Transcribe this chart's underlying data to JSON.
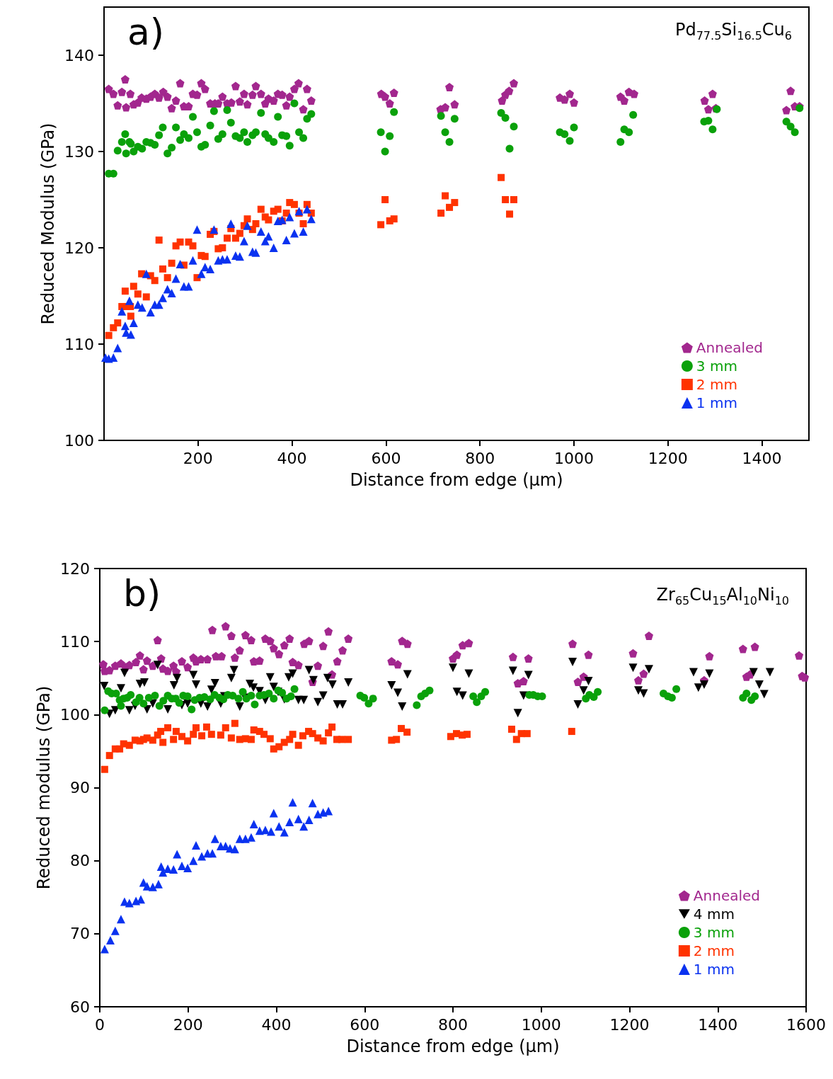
{
  "chart_data": [
    {
      "type": "scatter",
      "title": "a)",
      "subtitle": "Pd$_{77.5}$Si$_{16.5}$Cu$_{6}$",
      "xlabel": "Distance from edge (μm)",
      "ylabel": "Reduced Modulus (GPa)",
      "xlim": [
        0,
        1500
      ],
      "xticks": [
        200,
        400,
        600,
        800,
        1000,
        1200,
        1400
      ],
      "ylim": [
        100,
        145
      ],
      "yticks": [
        100,
        110,
        120,
        130,
        140
      ],
      "grid": false,
      "legend": "bottom right",
      "series": [
        {
          "name": "Annealed",
          "color": "#a2278e",
          "x": [
            10,
            20,
            29,
            38,
            45,
            47,
            56,
            63,
            72,
            80,
            90,
            99,
            108,
            117,
            126,
            135,
            144,
            153,
            162,
            170,
            180,
            189,
            198,
            207,
            215,
            226,
            236,
            243,
            252,
            262,
            271,
            280,
            289,
            298,
            305,
            316,
            323,
            334,
            343,
            350,
            361,
            370,
            379,
            388,
            395,
            405,
            414,
            424,
            432,
            441,
            590,
            598,
            608,
            617,
            716,
            726,
            735,
            746,
            847,
            854,
            862,
            872,
            970,
            980,
            991,
            1000,
            1099,
            1107,
            1117,
            1128,
            1278,
            1286,
            1295,
            1302,
            1452,
            1461,
            1470,
            1480
          ],
          "values": [
            136.5,
            136.0,
            134.8,
            136.2,
            137.5,
            134.6,
            136.0,
            134.9,
            135.1,
            135.6,
            135.5,
            135.7,
            136.0,
            135.6,
            136.2,
            135.7,
            134.5,
            135.3,
            137.1,
            134.7,
            134.7,
            136.0,
            135.9,
            137.1,
            136.5,
            135.0,
            135.0,
            135.0,
            135.7,
            135.0,
            135.1,
            136.8,
            135.2,
            136.0,
            134.9,
            135.9,
            136.8,
            136.0,
            135.0,
            135.5,
            135.3,
            136.0,
            135.9,
            134.8,
            135.7,
            136.5,
            137.1,
            134.4,
            136.5,
            135.3,
            136.0,
            135.7,
            135.0,
            136.1,
            134.4,
            134.6,
            136.7,
            134.9,
            135.3,
            135.9,
            136.3,
            137.1,
            135.6,
            135.4,
            136.0,
            135.1,
            135.7,
            135.3,
            136.2,
            136.0,
            135.3,
            134.4,
            136.0,
            134.5,
            134.3,
            136.3,
            134.7,
            134.7
          ]
        },
        {
          "name": "3 mm",
          "color": "#0aa10a",
          "marker": "circle",
          "x": [
            10,
            20,
            29,
            38,
            45,
            47,
            54,
            57,
            63,
            72,
            81,
            90,
            99,
            108,
            117,
            125,
            135,
            144,
            153,
            162,
            170,
            180,
            189,
            198,
            207,
            215,
            226,
            234,
            243,
            252,
            262,
            270,
            280,
            289,
            298,
            305,
            316,
            323,
            334,
            343,
            350,
            361,
            370,
            379,
            388,
            395,
            405,
            415,
            424,
            432,
            441,
            589,
            598,
            608,
            617,
            717,
            726,
            735,
            746,
            845,
            854,
            863,
            872,
            970,
            980,
            991,
            1000,
            1099,
            1107,
            1117,
            1126,
            1277,
            1286,
            1295,
            1304,
            1452,
            1461,
            1470,
            1480
          ],
          "values": [
            127.7,
            127.7,
            130.1,
            131.0,
            131.8,
            129.8,
            131.0,
            130.8,
            130.0,
            130.5,
            130.3,
            131.0,
            130.9,
            130.7,
            131.7,
            132.5,
            129.8,
            130.4,
            132.5,
            131.2,
            131.8,
            131.4,
            133.6,
            132.0,
            130.5,
            130.7,
            132.7,
            134.2,
            131.3,
            131.8,
            134.3,
            133.0,
            131.6,
            131.4,
            132.0,
            131.0,
            131.7,
            132.0,
            134.0,
            131.8,
            131.4,
            131.0,
            133.6,
            131.7,
            131.6,
            130.6,
            135.0,
            132.0,
            131.4,
            133.4,
            133.9,
            132.0,
            130.0,
            131.6,
            134.1,
            133.7,
            132.0,
            131.0,
            133.4,
            134.0,
            133.5,
            130.3,
            132.6,
            132.0,
            131.8,
            131.1,
            132.5,
            131.0,
            132.3,
            132.0,
            133.8,
            133.1,
            133.2,
            132.3,
            134.4,
            133.1,
            132.6,
            132.0,
            134.5
          ]
        },
        {
          "name": "2 mm",
          "color": "#ff3300",
          "marker": "square",
          "x": [
            10,
            20,
            29,
            38,
            45,
            47,
            56,
            57,
            63,
            72,
            80,
            90,
            99,
            108,
            117,
            125,
            135,
            144,
            153,
            162,
            170,
            180,
            189,
            198,
            207,
            215,
            226,
            234,
            243,
            252,
            262,
            270,
            280,
            289,
            298,
            305,
            316,
            323,
            334,
            343,
            350,
            361,
            370,
            379,
            388,
            395,
            405,
            415,
            424,
            432,
            441,
            589,
            598,
            608,
            617,
            717,
            726,
            735,
            746,
            845,
            854,
            863,
            872
          ],
          "values": [
            110.9,
            111.7,
            112.2,
            113.9,
            115.5,
            113.9,
            113.9,
            112.9,
            116.0,
            115.2,
            117.3,
            114.9,
            117.1,
            116.6,
            120.8,
            117.8,
            116.9,
            118.4,
            120.2,
            120.6,
            118.2,
            120.6,
            120.2,
            116.9,
            119.2,
            119.1,
            121.4,
            121.7,
            119.9,
            120.0,
            121.0,
            122.0,
            121.0,
            121.5,
            122.3,
            123.0,
            121.9,
            122.5,
            124.0,
            123.2,
            122.9,
            123.8,
            124.0,
            122.8,
            123.6,
            124.7,
            124.5,
            123.6,
            122.5,
            124.5,
            123.6,
            122.4,
            125.0,
            122.8,
            123.0,
            123.6,
            125.4,
            124.2,
            124.7,
            127.3,
            125.0,
            123.5,
            125.0
          ]
        },
        {
          "name": "1 mm",
          "color": "#0a32f0",
          "marker": "triangle",
          "x": [
            3,
            10,
            20,
            29,
            38,
            45,
            47,
            54,
            57,
            63,
            72,
            81,
            90,
            99,
            108,
            117,
            125,
            135,
            144,
            153,
            162,
            170,
            180,
            189,
            198,
            207,
            215,
            226,
            234,
            243,
            252,
            262,
            270,
            280,
            289,
            298,
            305,
            316,
            323,
            334,
            343,
            350,
            361,
            370,
            379,
            388,
            395,
            405,
            415,
            424,
            432,
            441
          ],
          "values": [
            108.6,
            108.5,
            108.6,
            109.6,
            113.4,
            111.9,
            111.2,
            114.5,
            111.0,
            112.2,
            114.1,
            113.8,
            117.3,
            113.3,
            114.1,
            114.1,
            114.8,
            115.7,
            115.3,
            116.8,
            118.3,
            116.0,
            116.0,
            118.7,
            121.9,
            117.3,
            118.0,
            117.8,
            121.9,
            118.7,
            118.8,
            118.8,
            122.5,
            119.2,
            119.1,
            120.7,
            122.3,
            119.6,
            119.5,
            121.7,
            120.7,
            121.2,
            120.0,
            122.8,
            122.9,
            120.8,
            123.2,
            121.5,
            123.8,
            121.7,
            124.0,
            123.0
          ]
        }
      ]
    },
    {
      "type": "scatter",
      "title": "b)",
      "subtitle": "Zr$_{65}$Cu$_{15}$Al$_{10}$Ni$_{10}$",
      "xlabel": "Distance from edge (μm)",
      "ylabel": "Reduced modulus (GPa)",
      "xlim": [
        0,
        1600
      ],
      "xticks": [
        0,
        200,
        400,
        600,
        800,
        1000,
        1200,
        1400,
        1600
      ],
      "ylim": [
        60,
        120
      ],
      "yticks": [
        60,
        70,
        80,
        90,
        100,
        110,
        120
      ],
      "grid": false,
      "legend": "bottom right",
      "series": [
        {
          "name": "Annealed",
          "color": "#a2278e",
          "x": [
            8,
            11,
            22,
            35,
            48,
            58,
            67,
            82,
            91,
            99,
            107,
            120,
            131,
            139,
            143,
            154,
            167,
            173,
            186,
            199,
            212,
            218,
            229,
            244,
            255,
            263,
            276,
            285,
            298,
            306,
            317,
            330,
            343,
            349,
            362,
            375,
            386,
            394,
            406,
            418,
            430,
            437,
            450,
            463,
            474,
            482,
            494,
            506,
            518,
            526,
            538,
            550,
            563,
            661,
            675,
            685,
            697,
            800,
            809,
            822,
            836,
            936,
            947,
            960,
            971,
            1071,
            1083,
            1096,
            1107,
            1208,
            1220,
            1232,
            1244,
            1369,
            1381,
            1457,
            1465,
            1473,
            1484,
            1584,
            1591,
            1597
          ],
          "values": [
            106.9,
            106.0,
            106.1,
            106.7,
            107.0,
            106.5,
            106.8,
            107.2,
            108.1,
            106.2,
            107.4,
            106.7,
            110.2,
            107.7,
            106.3,
            106.0,
            106.7,
            105.9,
            107.3,
            106.5,
            107.8,
            107.3,
            107.6,
            107.6,
            111.6,
            108.0,
            108.0,
            112.1,
            110.8,
            107.8,
            108.8,
            110.9,
            110.2,
            107.3,
            107.4,
            110.4,
            110.1,
            109.1,
            108.3,
            109.5,
            110.4,
            107.2,
            106.8,
            109.7,
            110.1,
            104.5,
            106.7,
            109.4,
            111.4,
            105.5,
            107.3,
            108.8,
            110.4,
            107.3,
            106.9,
            110.1,
            109.7,
            107.7,
            108.2,
            109.5,
            109.8,
            107.9,
            104.3,
            104.6,
            107.7,
            109.7,
            104.5,
            105.2,
            108.2,
            108.4,
            104.7,
            105.6,
            110.8,
            104.7,
            108.0,
            109.0,
            105.2,
            105.5,
            109.3,
            108.1,
            105.3,
            105.1
          ]
        },
        {
          "name": "4 mm",
          "color": "#000000",
          "marker": "triangle-down",
          "x": [
            10,
            22,
            35,
            48,
            56,
            67,
            80,
            91,
            101,
            107,
            120,
            131,
            154,
            168,
            175,
            186,
            199,
            212,
            218,
            229,
            244,
            253,
            261,
            274,
            282,
            298,
            304,
            317,
            329,
            340,
            348,
            362,
            375,
            386,
            394,
            404,
            418,
            428,
            437,
            450,
            462,
            474,
            484,
            494,
            506,
            516,
            527,
            538,
            550,
            563,
            661,
            675,
            685,
            697,
            800,
            809,
            822,
            836,
            936,
            947,
            960,
            971,
            1071,
            1083,
            1096,
            1107,
            1208,
            1220,
            1232,
            1244,
            1345,
            1356,
            1369,
            1381,
            1481,
            1494,
            1505,
            1518
          ],
          "values": [
            103.9,
            100.1,
            100.6,
            103.6,
            105.7,
            100.6,
            101.2,
            104.2,
            104.4,
            100.7,
            101.5,
            106.8,
            100.7,
            104.0,
            105.0,
            101.3,
            101.5,
            105.4,
            104.1,
            101.5,
            101.1,
            103.4,
            104.3,
            101.5,
            102.5,
            105.0,
            106.1,
            101.1,
            102.3,
            104.2,
            103.7,
            103.2,
            102.0,
            105.1,
            103.8,
            103.1,
            102.1,
            105.1,
            105.6,
            102.0,
            102.0,
            106.1,
            104.7,
            101.7,
            102.6,
            105.0,
            104.1,
            101.4,
            101.4,
            104.4,
            104.0,
            103.0,
            101.1,
            105.5,
            106.4,
            103.1,
            102.6,
            105.6,
            106.0,
            100.2,
            102.6,
            105.4,
            107.2,
            101.4,
            103.3,
            104.6,
            106.4,
            103.3,
            102.9,
            106.2,
            105.8,
            103.7,
            104.1,
            105.6,
            105.8,
            104.1,
            102.8,
            105.8
          ]
        },
        {
          "name": "3 mm",
          "color": "#0aa10a",
          "marker": "circle",
          "x": [
            11,
            19,
            27,
            37,
            45,
            48,
            54,
            62,
            70,
            82,
            90,
            99,
            111,
            125,
            135,
            144,
            154,
            163,
            172,
            180,
            189,
            199,
            208,
            215,
            226,
            237,
            250,
            260,
            271,
            280,
            290,
            301,
            314,
            324,
            332,
            343,
            351,
            362,
            372,
            383,
            394,
            404,
            413,
            423,
            433,
            441,
            590,
            599,
            609,
            619,
            718,
            728,
            737,
            747,
            846,
            854,
            864,
            873,
            973,
            982,
            992,
            1002,
            1101,
            1109,
            1119,
            1128,
            1277,
            1287,
            1296,
            1306,
            1457,
            1465,
            1476,
            1484
          ],
          "values": [
            100.6,
            103.2,
            102.9,
            102.9,
            102.0,
            101.2,
            102.2,
            102.3,
            102.7,
            101.7,
            102.3,
            101.5,
            102.3,
            102.6,
            101.2,
            101.9,
            102.6,
            102.2,
            102.2,
            101.6,
            102.6,
            102.5,
            100.7,
            102.0,
            102.3,
            102.4,
            102.1,
            102.7,
            102.3,
            102.1,
            102.7,
            102.6,
            102.2,
            103.1,
            102.2,
            102.6,
            101.4,
            102.6,
            102.7,
            102.9,
            102.2,
            103.3,
            103.0,
            102.2,
            102.5,
            103.5,
            102.6,
            102.3,
            101.5,
            102.2,
            101.3,
            102.5,
            102.9,
            103.3,
            102.5,
            101.7,
            102.5,
            103.1,
            102.7,
            102.7,
            102.5,
            102.5,
            102.2,
            102.7,
            102.4,
            103.1,
            102.9,
            102.5,
            102.3,
            103.5,
            102.3,
            102.9,
            102.0,
            102.5
          ]
        },
        {
          "name": "2 mm",
          "color": "#ff3300",
          "marker": "square",
          "x": [
            11,
            22,
            35,
            45,
            54,
            67,
            80,
            91,
            99,
            107,
            120,
            131,
            138,
            143,
            154,
            167,
            173,
            186,
            199,
            212,
            218,
            231,
            242,
            253,
            274,
            285,
            298,
            306,
            317,
            330,
            343,
            349,
            362,
            372,
            386,
            394,
            406,
            418,
            430,
            437,
            450,
            460,
            473,
            482,
            494,
            506,
            518,
            526,
            537,
            548,
            563,
            661,
            672,
            683,
            696,
            795,
            808,
            821,
            832,
            933,
            944,
            955,
            968,
            1069
          ],
          "values": [
            92.5,
            94.4,
            95.3,
            95.3,
            96.0,
            95.8,
            96.5,
            96.4,
            96.6,
            96.8,
            96.5,
            97.2,
            97.7,
            96.2,
            98.2,
            96.6,
            97.7,
            97.0,
            96.4,
            97.3,
            98.2,
            97.1,
            98.3,
            97.3,
            97.2,
            98.2,
            96.8,
            98.8,
            96.6,
            96.7,
            96.6,
            97.9,
            97.7,
            97.3,
            96.7,
            95.3,
            95.6,
            96.2,
            96.6,
            97.3,
            95.8,
            97.1,
            97.7,
            97.4,
            96.8,
            96.4,
            97.5,
            98.3,
            96.6,
            96.6,
            96.6,
            96.5,
            96.6,
            98.1,
            97.6,
            97.0,
            97.4,
            97.2,
            97.3,
            98.0,
            96.6,
            97.4,
            97.4,
            97.7
          ]
        },
        {
          "name": "1 mm",
          "color": "#0a32f0",
          "marker": "triangle",
          "x": [
            11,
            24,
            35,
            48,
            56,
            67,
            82,
            93,
            99,
            107,
            120,
            133,
            139,
            143,
            154,
            167,
            175,
            186,
            199,
            212,
            218,
            231,
            244,
            255,
            261,
            274,
            285,
            295,
            306,
            317,
            330,
            343,
            349,
            362,
            375,
            388,
            394,
            406,
            418,
            430,
            437,
            450,
            462,
            474,
            482,
            494,
            506,
            518
          ],
          "values": [
            67.9,
            69.1,
            70.4,
            72.0,
            74.4,
            74.2,
            74.5,
            74.7,
            77.0,
            76.5,
            76.4,
            76.8,
            79.2,
            78.4,
            78.9,
            78.8,
            80.9,
            79.3,
            79.0,
            80.0,
            82.1,
            80.6,
            81.0,
            81.0,
            83.0,
            82.0,
            82.0,
            81.7,
            81.6,
            83.0,
            83.0,
            83.2,
            85.0,
            84.1,
            84.2,
            84.0,
            86.5,
            84.7,
            83.9,
            85.3,
            88.0,
            85.7,
            84.7,
            85.6,
            87.9,
            86.4,
            86.6,
            86.8
          ]
        }
      ]
    }
  ]
}
